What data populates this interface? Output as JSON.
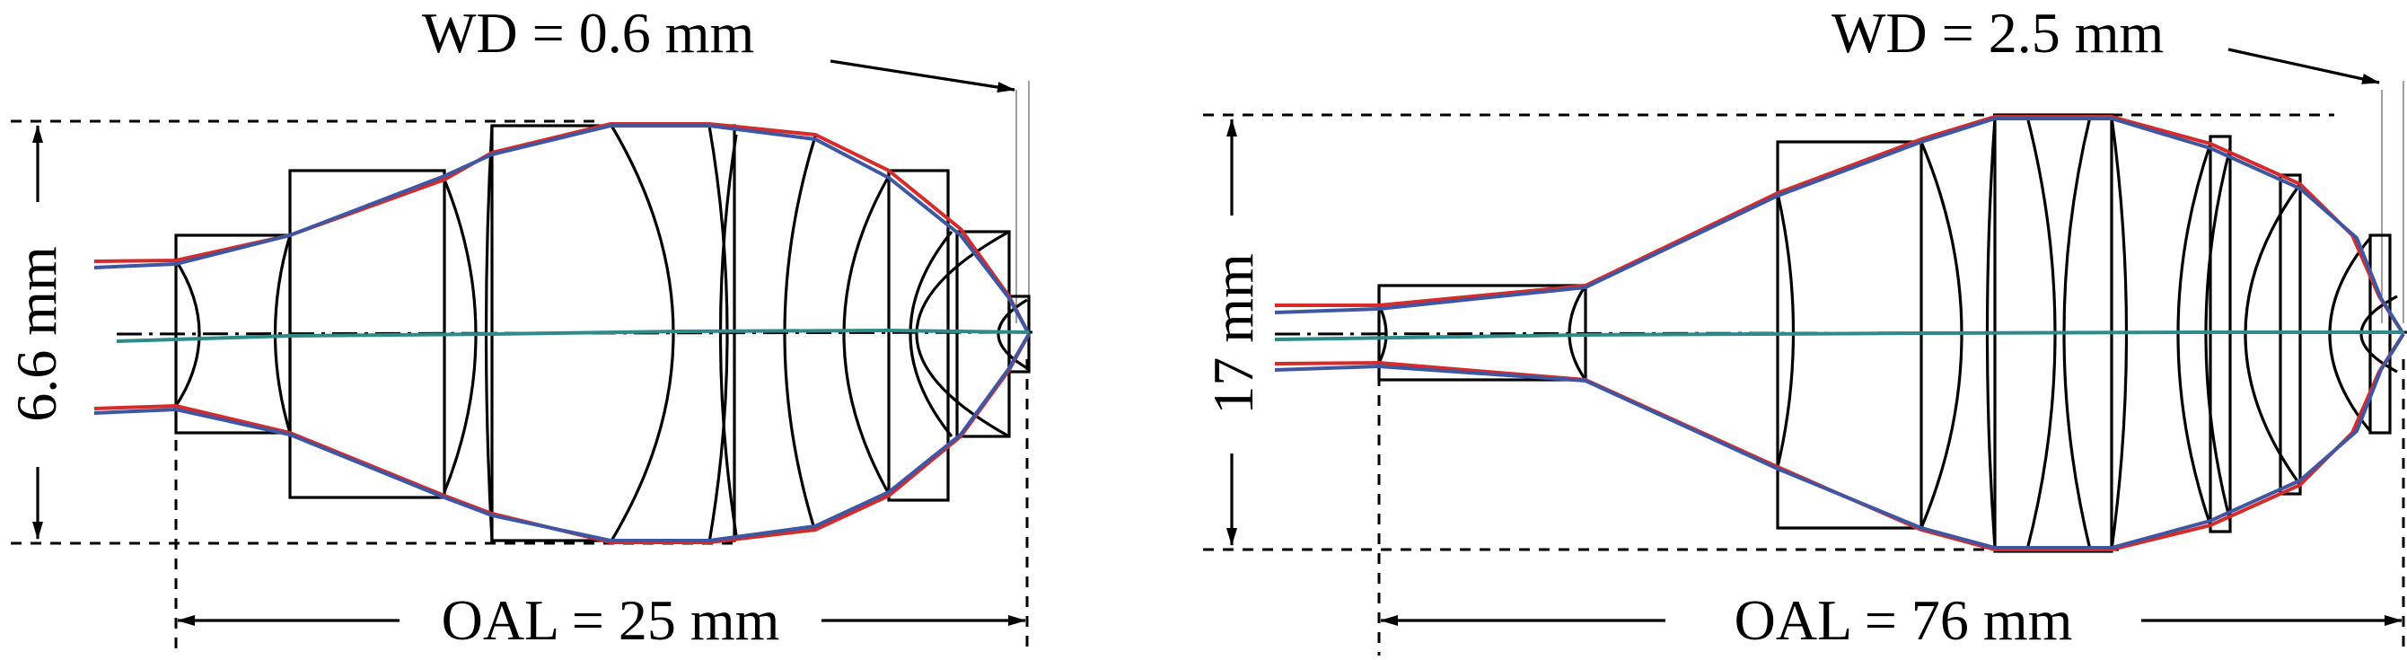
{
  "panels": [
    {
      "wd_label": "WD = 0.6 mm",
      "height_label": "6.6 mm",
      "oal_label": "OAL = 25 mm"
    },
    {
      "wd_label": "WD = 2.5 mm",
      "height_label": "17 mm",
      "oal_label": "OAL = 76 mm"
    }
  ],
  "colors": {
    "ray_red": "#d62b2b",
    "ray_blue": "#3f56a3",
    "ray_teal": "#2f8a8a",
    "outline": "#000000"
  }
}
